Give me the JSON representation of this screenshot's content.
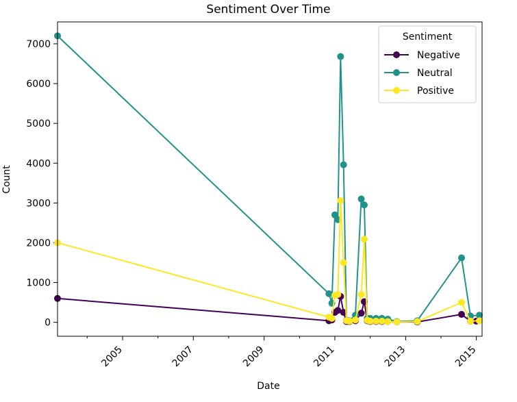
{
  "chart_data": {
    "type": "line",
    "title": "Sentiment Over Time",
    "xlabel": "Date",
    "ylabel": "Count",
    "xlim": [
      "2003-03-01",
      "2015-03-01"
    ],
    "ylim": [
      -350,
      7550
    ],
    "x_ticks": [
      "2005",
      "2007",
      "2009",
      "2011",
      "2013",
      "2015"
    ],
    "y_ticks": [
      "0",
      "1000",
      "2000",
      "3000",
      "4000",
      "5000",
      "6000",
      "7000"
    ],
    "grid": false,
    "legend": {
      "title": "Sentiment",
      "placement": "top-right"
    },
    "series": [
      {
        "name": "Negative",
        "color": "#440154",
        "points": [
          [
            "2003-03-01",
            600
          ],
          [
            "2010-11-01",
            40
          ],
          [
            "2010-12-01",
            60
          ],
          [
            "2011-01-01",
            250
          ],
          [
            "2011-02-01",
            300
          ],
          [
            "2011-03-01",
            650
          ],
          [
            "2011-04-01",
            250
          ],
          [
            "2011-05-01",
            20
          ],
          [
            "2011-06-01",
            20
          ],
          [
            "2011-08-01",
            40
          ],
          [
            "2011-10-01",
            230
          ],
          [
            "2011-11-01",
            520
          ],
          [
            "2011-12-01",
            40
          ],
          [
            "2012-01-01",
            20
          ],
          [
            "2012-03-01",
            20
          ],
          [
            "2012-05-01",
            20
          ],
          [
            "2012-07-01",
            20
          ],
          [
            "2012-10-01",
            10
          ],
          [
            "2013-05-01",
            10
          ],
          [
            "2014-08-01",
            200
          ],
          [
            "2014-11-01",
            30
          ],
          [
            "2015-01-01",
            30
          ]
        ]
      },
      {
        "name": "Neutral",
        "color": "#21918c",
        "points": [
          [
            "2003-03-01",
            7200
          ],
          [
            "2010-11-01",
            720
          ],
          [
            "2010-12-01",
            480
          ],
          [
            "2011-01-01",
            2700
          ],
          [
            "2011-02-01",
            2580
          ],
          [
            "2011-03-01",
            6680
          ],
          [
            "2011-04-01",
            3960
          ],
          [
            "2011-05-01",
            50
          ],
          [
            "2011-06-01",
            40
          ],
          [
            "2011-08-01",
            180
          ],
          [
            "2011-10-01",
            3100
          ],
          [
            "2011-11-01",
            2950
          ],
          [
            "2011-12-01",
            100
          ],
          [
            "2012-01-01",
            100
          ],
          [
            "2012-03-01",
            100
          ],
          [
            "2012-05-01",
            100
          ],
          [
            "2012-07-01",
            80
          ],
          [
            "2012-10-01",
            20
          ],
          [
            "2013-05-01",
            40
          ],
          [
            "2014-08-01",
            1620
          ],
          [
            "2014-11-01",
            160
          ],
          [
            "2015-02-01",
            180
          ]
        ]
      },
      {
        "name": "Positive",
        "color": "#fde725",
        "points": [
          [
            "2003-03-01",
            2000
          ],
          [
            "2010-11-01",
            130
          ],
          [
            "2010-12-01",
            100
          ],
          [
            "2011-01-01",
            680
          ],
          [
            "2011-02-01",
            700
          ],
          [
            "2011-03-01",
            3060
          ],
          [
            "2011-04-01",
            1500
          ],
          [
            "2011-05-01",
            40
          ],
          [
            "2011-06-01",
            30
          ],
          [
            "2011-08-01",
            60
          ],
          [
            "2011-10-01",
            700
          ],
          [
            "2011-11-01",
            2090
          ],
          [
            "2011-12-01",
            50
          ],
          [
            "2012-01-01",
            30
          ],
          [
            "2012-03-01",
            30
          ],
          [
            "2012-05-01",
            30
          ],
          [
            "2012-07-01",
            20
          ],
          [
            "2012-10-01",
            10
          ],
          [
            "2013-05-01",
            20
          ],
          [
            "2014-08-01",
            500
          ],
          [
            "2014-11-01",
            30
          ],
          [
            "2015-02-01",
            40
          ]
        ]
      }
    ]
  }
}
